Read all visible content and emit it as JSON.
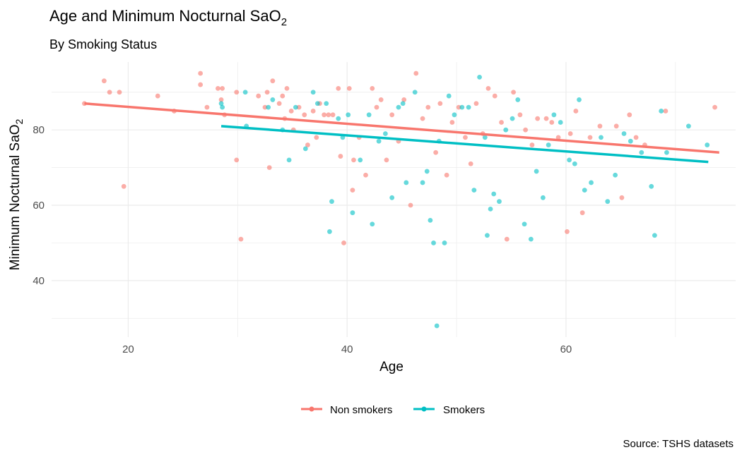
{
  "chart_data": {
    "type": "scatter",
    "title": "Age and Minimum Nocturnal SaO",
    "title_subscript": "2",
    "subtitle": "By Smoking Status",
    "xlabel": "Age",
    "ylabel": "Minimum Nocturnal SaO",
    "ylabel_subscript": "2",
    "caption": "Source: TSHS datasets",
    "xlim": [
      13,
      75.5
    ],
    "ylim": [
      25,
      98
    ],
    "xticks": [
      20,
      40,
      60
    ],
    "yticks": [
      40,
      60,
      80
    ],
    "grid": true,
    "legend_position": "bottom",
    "series": [
      {
        "name": "Non smokers",
        "color": "#F8766D",
        "trend": {
          "x": [
            16,
            74
          ],
          "y": [
            87,
            74
          ]
        },
        "points": [
          [
            16,
            87
          ],
          [
            17.8,
            93
          ],
          [
            18.3,
            90
          ],
          [
            19.2,
            90
          ],
          [
            19.6,
            65
          ],
          [
            22.7,
            89
          ],
          [
            24.2,
            85
          ],
          [
            26.6,
            95
          ],
          [
            26.6,
            92
          ],
          [
            27.2,
            86
          ],
          [
            28.2,
            91
          ],
          [
            28.5,
            88
          ],
          [
            28.6,
            91
          ],
          [
            28.8,
            84
          ],
          [
            29.9,
            90
          ],
          [
            29.9,
            72
          ],
          [
            30.3,
            51
          ],
          [
            31.9,
            89
          ],
          [
            32.5,
            86
          ],
          [
            32.7,
            90
          ],
          [
            32.9,
            70
          ],
          [
            33.2,
            93
          ],
          [
            33.8,
            87
          ],
          [
            34.1,
            89
          ],
          [
            34.3,
            83
          ],
          [
            34.5,
            91
          ],
          [
            34.9,
            85
          ],
          [
            35.1,
            80
          ],
          [
            35.6,
            86
          ],
          [
            36.1,
            84
          ],
          [
            36.4,
            76
          ],
          [
            36.9,
            85
          ],
          [
            37.2,
            78
          ],
          [
            37.5,
            87
          ],
          [
            37.9,
            84
          ],
          [
            38.3,
            84
          ],
          [
            38.7,
            84
          ],
          [
            39.2,
            91
          ],
          [
            39.4,
            73
          ],
          [
            39.7,
            50
          ],
          [
            40.2,
            91
          ],
          [
            40.5,
            64
          ],
          [
            40.6,
            72
          ],
          [
            41.1,
            78
          ],
          [
            41.7,
            68
          ],
          [
            42.3,
            91
          ],
          [
            42.7,
            86
          ],
          [
            43.1,
            88
          ],
          [
            43.6,
            72
          ],
          [
            44.1,
            84
          ],
          [
            44.7,
            77
          ],
          [
            45.2,
            88
          ],
          [
            45.8,
            60
          ],
          [
            46.3,
            95
          ],
          [
            46.9,
            83
          ],
          [
            47.4,
            86
          ],
          [
            48.1,
            74
          ],
          [
            48.5,
            87
          ],
          [
            49.1,
            68
          ],
          [
            49.6,
            82
          ],
          [
            50.2,
            86
          ],
          [
            50.8,
            78
          ],
          [
            51.3,
            71
          ],
          [
            51.8,
            87
          ],
          [
            52.4,
            79
          ],
          [
            52.9,
            91
          ],
          [
            53.5,
            89
          ],
          [
            54.1,
            82
          ],
          [
            54.6,
            51
          ],
          [
            55.2,
            90
          ],
          [
            55.8,
            84
          ],
          [
            56.3,
            80
          ],
          [
            56.9,
            76
          ],
          [
            57.4,
            83
          ],
          [
            58.2,
            83
          ],
          [
            58.7,
            82
          ],
          [
            59.3,
            78
          ],
          [
            60.1,
            53
          ],
          [
            60.4,
            79
          ],
          [
            60.9,
            85
          ],
          [
            61.5,
            58
          ],
          [
            62.2,
            78
          ],
          [
            63.1,
            81
          ],
          [
            64.6,
            81
          ],
          [
            65.1,
            62
          ],
          [
            65.8,
            84
          ],
          [
            66.4,
            78
          ],
          [
            67.2,
            76
          ],
          [
            69.1,
            85
          ],
          [
            73.6,
            86
          ]
        ]
      },
      {
        "name": "Smokers",
        "color": "#00BFC4",
        "trend": {
          "x": [
            28.5,
            73
          ],
          "y": [
            81,
            71.5
          ]
        },
        "points": [
          [
            28.5,
            87
          ],
          [
            28.6,
            86
          ],
          [
            30.7,
            90
          ],
          [
            30.8,
            81
          ],
          [
            32.8,
            86
          ],
          [
            33.2,
            88
          ],
          [
            34.1,
            80
          ],
          [
            34.7,
            72
          ],
          [
            35.3,
            86
          ],
          [
            36.2,
            75
          ],
          [
            36.9,
            90
          ],
          [
            37.3,
            87
          ],
          [
            38.1,
            87
          ],
          [
            38.4,
            53
          ],
          [
            38.6,
            61
          ],
          [
            39.2,
            83
          ],
          [
            39.6,
            78
          ],
          [
            40.1,
            84
          ],
          [
            40.5,
            58
          ],
          [
            41.2,
            72
          ],
          [
            42.0,
            84
          ],
          [
            42.3,
            55
          ],
          [
            42.9,
            77
          ],
          [
            43.5,
            79
          ],
          [
            44.1,
            62
          ],
          [
            44.7,
            86
          ],
          [
            45.1,
            87
          ],
          [
            45.4,
            66
          ],
          [
            46.2,
            90
          ],
          [
            46.9,
            66
          ],
          [
            47.3,
            69
          ],
          [
            47.6,
            56
          ],
          [
            47.9,
            50
          ],
          [
            48.2,
            28
          ],
          [
            48.4,
            77
          ],
          [
            48.9,
            50
          ],
          [
            49.3,
            89
          ],
          [
            49.8,
            84
          ],
          [
            50.5,
            86
          ],
          [
            51.1,
            86
          ],
          [
            51.6,
            64
          ],
          [
            52.1,
            94
          ],
          [
            52.6,
            78
          ],
          [
            52.8,
            52
          ],
          [
            53.1,
            59
          ],
          [
            53.4,
            63
          ],
          [
            53.9,
            61
          ],
          [
            54.5,
            80
          ],
          [
            55.1,
            83
          ],
          [
            55.6,
            88
          ],
          [
            56.2,
            55
          ],
          [
            56.8,
            51
          ],
          [
            57.3,
            69
          ],
          [
            57.9,
            62
          ],
          [
            58.4,
            76
          ],
          [
            58.9,
            84
          ],
          [
            59.5,
            82
          ],
          [
            60.3,
            72
          ],
          [
            60.8,
            71
          ],
          [
            61.2,
            88
          ],
          [
            61.7,
            64
          ],
          [
            62.3,
            66
          ],
          [
            63.2,
            78
          ],
          [
            63.8,
            61
          ],
          [
            64.5,
            68
          ],
          [
            65.3,
            79
          ],
          [
            65.9,
            77
          ],
          [
            66.9,
            74
          ],
          [
            67.8,
            65
          ],
          [
            68.1,
            52
          ],
          [
            68.7,
            85
          ],
          [
            69.2,
            74
          ],
          [
            71.2,
            81
          ],
          [
            72.9,
            76
          ]
        ]
      }
    ]
  }
}
